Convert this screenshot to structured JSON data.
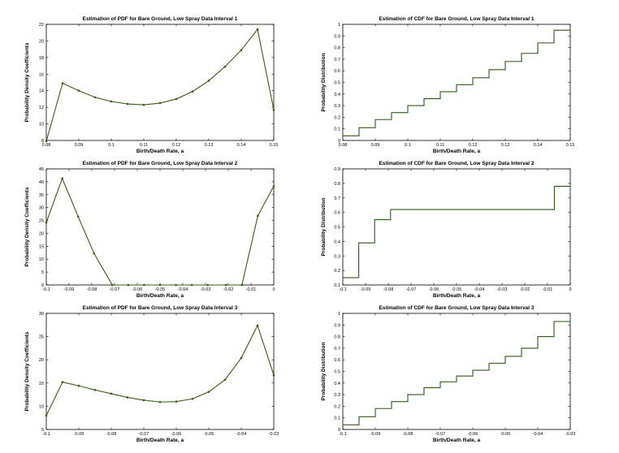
{
  "style": {
    "line_color": "#3f5a16",
    "marker_color": "#2e5e10",
    "step_color": "#2d5a1a",
    "axis_color": "#000000"
  },
  "chart_data": [
    {
      "type": "line",
      "title": "Estimation of PDF for Bare Ground, Low Spray Data Interval 1",
      "xlabel": "Birth/Death Rate, a",
      "ylabel": "Probability Density Coefficients",
      "xlim": [
        0.08,
        0.15
      ],
      "ylim": [
        8,
        22
      ],
      "x_ticks": [
        "0.08",
        "0.09",
        "0.1",
        "0.11",
        "0.12",
        "0.13",
        "0.14",
        "0.15"
      ],
      "y_ticks": [
        "8",
        "10",
        "12",
        "14",
        "16",
        "18",
        "20",
        "22"
      ],
      "grid": false,
      "series": [
        {
          "x": [
            0.08,
            0.085,
            0.09,
            0.095,
            0.1,
            0.105,
            0.11,
            0.115,
            0.12,
            0.125,
            0.13,
            0.135,
            0.14,
            0.145,
            0.15
          ],
          "values": [
            7.9,
            14.9,
            14.0,
            13.2,
            12.7,
            12.4,
            12.3,
            12.5,
            13.0,
            13.9,
            15.2,
            16.9,
            18.9,
            21.4,
            11.7
          ]
        }
      ]
    },
    {
      "type": "line",
      "title": "Estimation of CDF for Bare Ground, Low Spray Data Interval 1",
      "xlabel": "Birth/Death Rate, a",
      "ylabel": "Probability Distribution",
      "xlim": [
        0.08,
        0.15
      ],
      "ylim": [
        0,
        1
      ],
      "x_ticks": [
        "0.08",
        "0.09",
        "0.1",
        "0.11",
        "0.12",
        "0.13",
        "0.14",
        "0.15"
      ],
      "y_ticks": [
        "0",
        "0.1",
        "0.2",
        "0.3",
        "0.4",
        "0.5",
        "0.6",
        "0.7",
        "0.8",
        "0.9",
        "1"
      ],
      "grid": false,
      "step": true,
      "series": [
        {
          "x": [
            0.08,
            0.085,
            0.09,
            0.095,
            0.1,
            0.105,
            0.11,
            0.115,
            0.12,
            0.125,
            0.13,
            0.135,
            0.14,
            0.145,
            0.15
          ],
          "values": [
            0.04,
            0.11,
            0.18,
            0.24,
            0.3,
            0.36,
            0.42,
            0.48,
            0.54,
            0.61,
            0.68,
            0.75,
            0.84,
            0.95,
            0.95
          ]
        }
      ]
    },
    {
      "type": "line",
      "title": "Estimation of PDF for Bare Ground, Low Spray Data Interval 2",
      "xlabel": "Birth/Death Rate, a",
      "ylabel": "Probability Density Coefficients",
      "xlim": [
        -0.1,
        0
      ],
      "ylim": [
        0,
        45
      ],
      "x_ticks": [
        "-0.1",
        "-0.09",
        "-0.08",
        "-0.07",
        "-0.06",
        "-0.05",
        "-0.04",
        "-0.03",
        "-0.02",
        "-0.01",
        "0"
      ],
      "y_ticks": [
        "0",
        "5",
        "10",
        "15",
        "20",
        "25",
        "30",
        "35",
        "40",
        "45"
      ],
      "grid": false,
      "series": [
        {
          "x": [
            -0.1,
            -0.093,
            -0.086,
            -0.079,
            -0.071,
            -0.064,
            -0.057,
            -0.05,
            -0.043,
            -0.036,
            -0.029,
            -0.021,
            -0.014,
            -0.007,
            0
          ],
          "values": [
            24.2,
            41.3,
            26.5,
            12.2,
            0,
            0,
            0,
            0,
            0,
            0,
            0,
            0,
            0,
            26.8,
            38.3
          ]
        }
      ]
    },
    {
      "type": "line",
      "title": "Estimation of CDF for Bare Ground, Low Spray Data Interval 2",
      "xlabel": "Birth/Death Rate, a",
      "ylabel": "Probability Distribution",
      "xlim": [
        -0.1,
        0
      ],
      "ylim": [
        0.1,
        0.9
      ],
      "x_ticks": [
        "-0.1",
        "-0.09",
        "-0.08",
        "-0.07",
        "-0.06",
        "-0.05",
        "-0.04",
        "-0.03",
        "-0.02",
        "-0.01",
        "0"
      ],
      "y_ticks": [
        "0.1",
        "0.2",
        "0.3",
        "0.4",
        "0.5",
        "0.6",
        "0.7",
        "0.8",
        "0.9"
      ],
      "grid": false,
      "step": true,
      "series": [
        {
          "x": [
            -0.1,
            -0.093,
            -0.086,
            -0.079,
            -0.071,
            -0.064,
            -0.057,
            -0.05,
            -0.043,
            -0.036,
            -0.029,
            -0.021,
            -0.014,
            -0.007,
            0
          ],
          "values": [
            0.15,
            0.39,
            0.55,
            0.62,
            0.62,
            0.62,
            0.62,
            0.62,
            0.62,
            0.62,
            0.62,
            0.62,
            0.62,
            0.78,
            0.78
          ]
        }
      ]
    },
    {
      "type": "line",
      "title": "Estimation of PDF for Bare Ground, Low Spray Data Interval 3",
      "xlabel": "Birth/Death Rate, a",
      "ylabel": "Probability Density Coefficients",
      "xlim": [
        -0.1,
        -0.03
      ],
      "ylim": [
        5,
        30
      ],
      "x_ticks": [
        "-0.1",
        "-0.09",
        "-0.08",
        "-0.07",
        "-0.06",
        "-0.05",
        "-0.04",
        "-0.03"
      ],
      "y_ticks": [
        "5",
        "10",
        "15",
        "20",
        "25",
        "30"
      ],
      "grid": false,
      "series": [
        {
          "x": [
            -0.1,
            -0.095,
            -0.09,
            -0.085,
            -0.08,
            -0.075,
            -0.07,
            -0.065,
            -0.06,
            -0.055,
            -0.05,
            -0.045,
            -0.04,
            -0.035,
            -0.03
          ],
          "values": [
            8.0,
            15.2,
            14.4,
            13.5,
            12.7,
            11.9,
            11.3,
            10.9,
            11.0,
            11.6,
            13.1,
            15.7,
            20.4,
            27.4,
            16.7
          ]
        }
      ]
    },
    {
      "type": "line",
      "title": "Estimation of CDF for Bare Ground, Low Spray Data Interval 3",
      "xlabel": "Birth/Death Rate, a",
      "ylabel": "Probability Distribution",
      "xlim": [
        -0.1,
        -0.03
      ],
      "ylim": [
        0,
        1
      ],
      "x_ticks": [
        "-0.1",
        "-0.09",
        "-0.08",
        "-0.07",
        "-0.06",
        "-0.05",
        "-0.04",
        "-0.03"
      ],
      "y_ticks": [
        "0",
        "0.1",
        "0.2",
        "0.3",
        "0.4",
        "0.5",
        "0.6",
        "0.7",
        "0.8",
        "0.9",
        "1"
      ],
      "grid": false,
      "step": true,
      "series": [
        {
          "x": [
            -0.1,
            -0.095,
            -0.09,
            -0.085,
            -0.08,
            -0.075,
            -0.07,
            -0.065,
            -0.06,
            -0.055,
            -0.05,
            -0.045,
            -0.04,
            -0.035,
            -0.03
          ],
          "values": [
            0.04,
            0.11,
            0.18,
            0.24,
            0.3,
            0.36,
            0.41,
            0.46,
            0.51,
            0.57,
            0.63,
            0.7,
            0.8,
            0.93,
            0.93
          ]
        }
      ]
    }
  ]
}
